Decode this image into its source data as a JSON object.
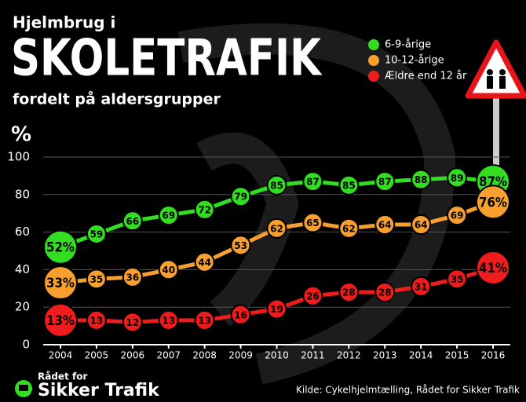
{
  "chart_data": {
    "type": "line",
    "pretitle": "Hjelmbrug i",
    "title": "SKOLETRAFIK",
    "subtitle": "fordelt på aldersgrupper",
    "y_label": "%",
    "categories": [
      "2004",
      "2005",
      "2006",
      "2007",
      "2008",
      "2009",
      "2010",
      "2011",
      "2012",
      "2013",
      "2014",
      "2015",
      "2016"
    ],
    "series": [
      {
        "name": "6-9-årige",
        "color": "#33dd22",
        "values": [
          52,
          59,
          66,
          69,
          72,
          79,
          85,
          87,
          85,
          87,
          88,
          89,
          87
        ],
        "value_labels": [
          "52%",
          "59",
          "66",
          "69",
          "72",
          "79",
          "85",
          "87",
          "85",
          "87",
          "88",
          "89",
          "87%"
        ]
      },
      {
        "name": "10-12-årige",
        "color": "#f7a030",
        "values": [
          33,
          35,
          36,
          40,
          44,
          53,
          62,
          65,
          62,
          64,
          64,
          69,
          76
        ],
        "value_labels": [
          "33%",
          "35",
          "36",
          "40",
          "44",
          "53",
          "62",
          "65",
          "62",
          "64",
          "64",
          "69",
          "76%"
        ]
      },
      {
        "name": "Ældre end 12 år",
        "color": "#ee1c1c",
        "values": [
          13,
          13,
          12,
          13,
          13,
          16,
          19,
          26,
          28,
          28,
          31,
          35,
          41
        ],
        "value_labels": [
          "13%",
          "13",
          "12",
          "13",
          "13",
          "16",
          "19",
          "26",
          "28",
          "28",
          "31",
          "35",
          "41%"
        ]
      }
    ],
    "ylim": [
      0,
      100
    ],
    "yticks": [
      0,
      20,
      40,
      60,
      80,
      100
    ],
    "grid": true
  },
  "footer": {
    "logo_line1": "Rådet for",
    "logo_line2": "Sikker Trafik",
    "source": "Kilde: Cykelhjelmtælling, Rådet for Sikker Trafik"
  }
}
